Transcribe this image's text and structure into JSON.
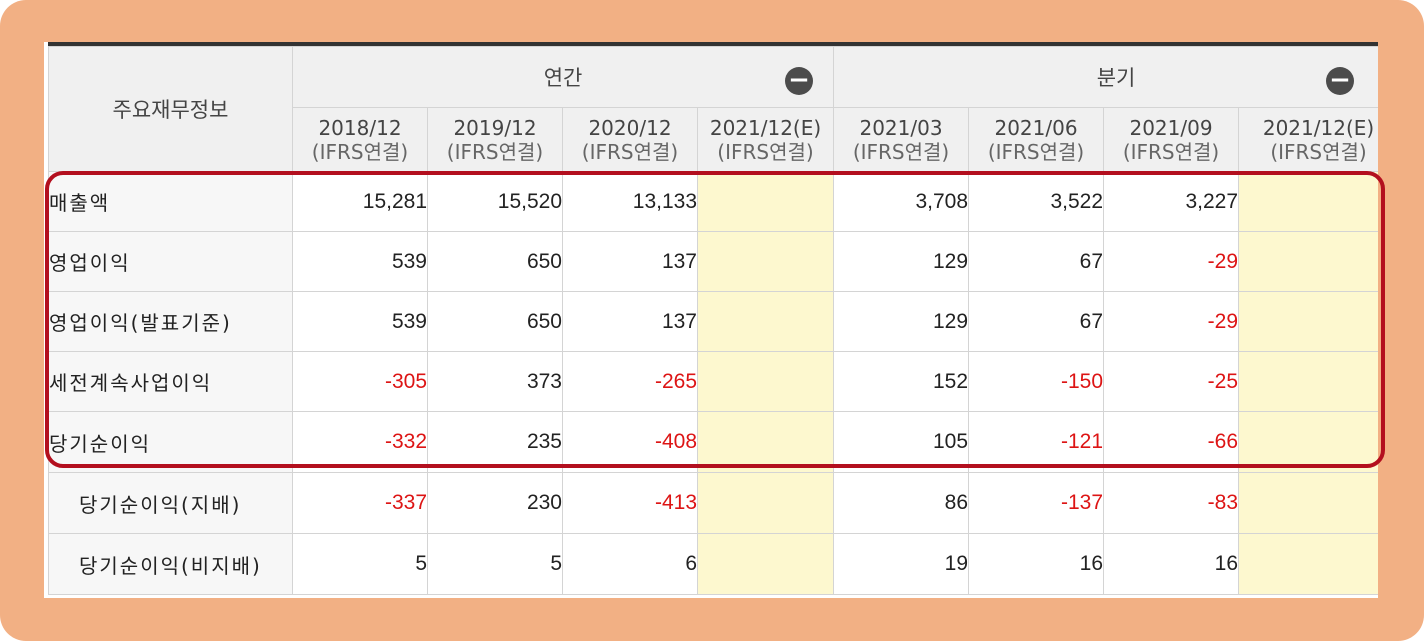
{
  "corner_label": "주요재무정보",
  "groups": {
    "annual": "연간",
    "quarterly": "분기"
  },
  "periods": [
    {
      "date": "2018/12",
      "basis": "(IFRS연결)"
    },
    {
      "date": "2019/12",
      "basis": "(IFRS연결)"
    },
    {
      "date": "2020/12",
      "basis": "(IFRS연결)"
    },
    {
      "date": "2021/12(E)",
      "basis": "(IFRS연결)"
    },
    {
      "date": "2021/03",
      "basis": "(IFRS연결)"
    },
    {
      "date": "2021/06",
      "basis": "(IFRS연결)"
    },
    {
      "date": "2021/09",
      "basis": "(IFRS연결)"
    },
    {
      "date": "2021/12(E)",
      "basis": "(IFRS연결)"
    }
  ],
  "rows": [
    {
      "label": "매출액",
      "values": [
        "15,281",
        "15,520",
        "13,133",
        "",
        "3,708",
        "3,522",
        "3,227",
        ""
      ]
    },
    {
      "label": "영업이익",
      "values": [
        "539",
        "650",
        "137",
        "",
        "129",
        "67",
        "-29",
        ""
      ]
    },
    {
      "label": "영업이익(발표기준)",
      "values": [
        "539",
        "650",
        "137",
        "",
        "129",
        "67",
        "-29",
        ""
      ]
    },
    {
      "label": "세전계속사업이익",
      "values": [
        "-305",
        "373",
        "-265",
        "",
        "152",
        "-150",
        "-25",
        ""
      ]
    },
    {
      "label": "당기순이익",
      "values": [
        "-332",
        "235",
        "-408",
        "",
        "105",
        "-121",
        "-66",
        ""
      ]
    },
    {
      "label": "당기순이익(지배)",
      "values": [
        "-337",
        "230",
        "-413",
        "",
        "86",
        "-137",
        "-83",
        ""
      ]
    },
    {
      "label": "당기순이익(비지배)",
      "values": [
        "5",
        "5",
        "6",
        "",
        "19",
        "16",
        "16",
        ""
      ]
    }
  ],
  "colors": {
    "negative": "#dd1414",
    "estimate_fill": "#fdf8cf",
    "highlight_border": "#b30f1e",
    "frame": "#f2b084"
  },
  "icons": [
    "collapse-minus-icon"
  ]
}
